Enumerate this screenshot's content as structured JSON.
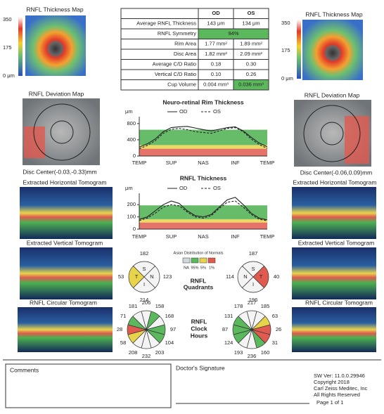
{
  "thickness_map": {
    "title": "RNFL Thickness Map",
    "scale": [
      "350",
      "175",
      "0 μm"
    ]
  },
  "summary_table": {
    "columns": [
      "OD",
      "OS"
    ],
    "rows": [
      [
        "Average RNFL Thickness",
        "143 μm",
        "134 μm"
      ],
      [
        "RNFL Symmetry",
        "94%"
      ],
      [
        "Rim Area",
        "1.77 mm²",
        "1.89 mm²"
      ],
      [
        "Disc Area",
        "1.82 mm²",
        "2.09 mm²"
      ],
      [
        "Average C/D Ratio",
        "0.18",
        "0.30"
      ],
      [
        "Vertical C/D Ratio",
        "0.10",
        "0.26"
      ],
      [
        "Cup Volume",
        "0.004 mm³",
        "0.036 mm³"
      ]
    ]
  },
  "deviation_map": {
    "title": "RNFL Deviation Map",
    "disc_center": [
      "Disc Center(-0.03,-0.33)mm",
      "Disc Center(-0.06,0.09)mm"
    ]
  },
  "horizontal_tomogram": {
    "title": "Extracted Horizontal Tomogram"
  },
  "vertical_tomogram": {
    "title": "Extracted Vertical Tomogram"
  },
  "circular_tomogram": {
    "title": "RNFL Circular Tomogram"
  },
  "chart_data": [
    {
      "type": "line",
      "title": "Neuro-retinal Rim Thickness",
      "y_label": "μm",
      "categories": [
        "TEMP",
        null,
        null,
        null,
        "SUP",
        null,
        null,
        null,
        "NAS",
        null,
        null,
        null,
        "INF",
        null,
        null,
        null,
        "TEMP"
      ],
      "series": [
        {
          "name": "OD",
          "color": "#222222",
          "line_style": "solid",
          "values": [
            220,
            300,
            420,
            600,
            700,
            720,
            730,
            690,
            650,
            620,
            660,
            700,
            720,
            620,
            460,
            320,
            230
          ]
        },
        {
          "name": "OS",
          "color": "#222222",
          "line_style": "dashed",
          "values": [
            180,
            260,
            380,
            560,
            660,
            680,
            650,
            600,
            580,
            560,
            620,
            680,
            700,
            600,
            420,
            280,
            190
          ]
        }
      ],
      "ylim": [
        0,
        900
      ],
      "yticks": [
        0,
        400,
        800
      ]
    },
    {
      "type": "line",
      "title": "RNFL Thickness",
      "y_label": "μm",
      "categories": [
        "TEMP",
        null,
        null,
        null,
        "SUP",
        null,
        null,
        null,
        "NAS",
        null,
        null,
        null,
        "INF",
        null,
        null,
        null,
        "TEMP"
      ],
      "series": [
        {
          "name": "OD",
          "color": "#222222",
          "line_style": "solid",
          "values": [
            80,
            100,
            150,
            200,
            230,
            210,
            150,
            110,
            100,
            120,
            180,
            240,
            260,
            200,
            130,
            90,
            75
          ]
        },
        {
          "name": "OS",
          "color": "#222222",
          "line_style": "dashed",
          "values": [
            70,
            90,
            130,
            180,
            200,
            190,
            140,
            100,
            90,
            110,
            170,
            220,
            230,
            180,
            120,
            80,
            70
          ]
        }
      ],
      "ylim": [
        0,
        270
      ],
      "yticks": [
        0,
        100,
        200
      ]
    }
  ],
  "normals_legend": {
    "title": "Asian Distribution of Normals",
    "labels": [
      "NA",
      "95%",
      "5%",
      "1%"
    ],
    "colors": [
      "#cfd8dc",
      "#5cb85c",
      "#e8d44a",
      "#e05a50"
    ]
  },
  "quadrants": {
    "title": [
      "RNFL",
      "Quadrants"
    ],
    "letters": [
      "S",
      "N",
      "I",
      "T"
    ],
    "od": {
      "values": [
        182,
        123,
        214,
        53
      ],
      "colors": [
        "#f4f4f4",
        "#f4f4f4",
        "#f4f4f4",
        "#e8d44a"
      ]
    },
    "os": {
      "values": [
        187,
        114,
        196,
        40
      ],
      "colors": [
        "#f4f4f4",
        "#f4f4f4",
        "#f4f4f4",
        "#e05a50"
      ]
    }
  },
  "clock_hours": {
    "title": [
      "RNFL",
      "Clock",
      "Hours"
    ],
    "od": {
      "values": [
        206,
        158,
        168,
        97,
        104,
        203,
        232,
        208,
        58,
        28,
        71,
        181
      ],
      "colors": [
        "#f4f4f4",
        "#5cb85c",
        "#f4f4f4",
        "#5cb85c",
        "#5cb85c",
        "#f4f4f4",
        "#f4f4f4",
        "#f4f4f4",
        "#e8d44a",
        "#e05a50",
        "#5cb85c",
        "#f4f4f4"
      ]
    },
    "os": {
      "values": [
        217,
        185,
        63,
        26,
        31,
        160,
        236,
        193,
        124,
        87,
        131,
        178
      ],
      "colors": [
        "#f4f4f4",
        "#f4f4f4",
        "#e8d44a",
        "#e05a50",
        "#e05a50",
        "#5cb85c",
        "#f4f4f4",
        "#f4f4f4",
        "#5cb85c",
        "#5cb85c",
        "#5cb85c",
        "#f4f4f4"
      ]
    }
  },
  "footer": {
    "comments": "Comments",
    "signature": "Doctor's Signature",
    "software": [
      "SW Ver: 11.0.0.29946",
      "Copyright 2018",
      "Carl Zeiss Meditec, Inc",
      "All Rights Reserved"
    ],
    "page": "Page 1 of 1"
  }
}
